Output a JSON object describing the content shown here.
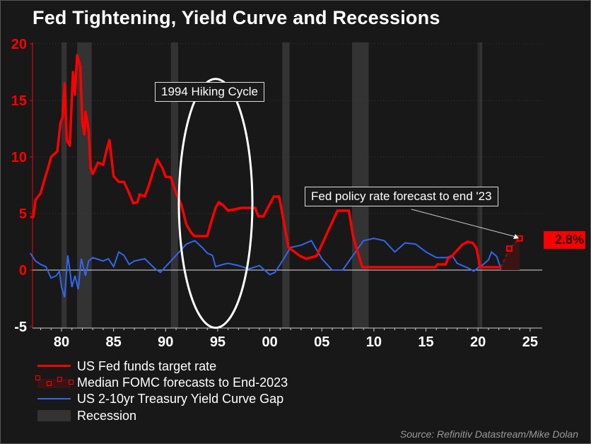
{
  "title": "Fed Tightening, Yield Curve and Recessions",
  "source": "Source: Refinitiv Datastream/Mike Dolan",
  "chart_data": {
    "type": "line",
    "title": "Fed Tightening, Yield Curve and Recessions",
    "xlabel": "",
    "ylabel": "",
    "xlim": [
      1977,
      2025.6
    ],
    "ylim": [
      -5,
      20
    ],
    "x_ticks": [
      1980,
      1985,
      1990,
      1995,
      2000,
      2005,
      2010,
      2015,
      2020,
      2025
    ],
    "x_tick_labels": [
      "80",
      "85",
      "90",
      "95",
      "00",
      "05",
      "10",
      "15",
      "20",
      "25"
    ],
    "y_ticks": [
      -5,
      0,
      5,
      10,
      15,
      20
    ],
    "y_tick_labels": [
      "-5",
      "0",
      "5",
      "10",
      "15",
      "20"
    ],
    "grid": "horizontal dotted",
    "legend_placement": "bottom-left",
    "colors": {
      "fed_funds": "#ff0000",
      "forecast": "#ff0000",
      "forecast_fill": "#3a1414",
      "yield_gap": "#3366ee",
      "recession": "#333333",
      "background": "#181818",
      "axis_labels": "#ff0000"
    },
    "series": [
      {
        "name": "US Fed funds target rate",
        "points": [
          [
            1977,
            4.7
          ],
          [
            1977.3,
            4.7
          ],
          [
            1977.5,
            6.2
          ],
          [
            1978,
            6.8
          ],
          [
            1978.3,
            7.8
          ],
          [
            1978.7,
            9
          ],
          [
            1979,
            10
          ],
          [
            1979.6,
            10.5
          ],
          [
            1979.9,
            13
          ],
          [
            1980.1,
            13.5
          ],
          [
            1980.3,
            16.5
          ],
          [
            1980.5,
            11.5
          ],
          [
            1980.8,
            11
          ],
          [
            1981.1,
            17.5
          ],
          [
            1981.3,
            15.5
          ],
          [
            1981.5,
            19
          ],
          [
            1981.8,
            18
          ],
          [
            1982.0,
            13
          ],
          [
            1982.2,
            12
          ],
          [
            1982.3,
            14
          ],
          [
            1982.6,
            12.5
          ],
          [
            1982.8,
            9
          ],
          [
            1983.0,
            8.5
          ],
          [
            1983.5,
            9.5
          ],
          [
            1984,
            9.3
          ],
          [
            1984.3,
            10.5
          ],
          [
            1984.6,
            11.5
          ],
          [
            1985,
            8.3
          ],
          [
            1985.5,
            7.8
          ],
          [
            1986,
            7.8
          ],
          [
            1986.5,
            6.8
          ],
          [
            1986.9,
            5.9
          ],
          [
            1987.3,
            6
          ],
          [
            1987.5,
            6.7
          ],
          [
            1988,
            6.5
          ],
          [
            1988.4,
            7.5
          ],
          [
            1988.8,
            8.7
          ],
          [
            1989.2,
            9.8
          ],
          [
            1989.7,
            9
          ],
          [
            1990,
            8.25
          ],
          [
            1990.5,
            8.2
          ],
          [
            1991,
            6.8
          ],
          [
            1991.5,
            5.8
          ],
          [
            1992,
            4
          ],
          [
            1992.5,
            3.25
          ],
          [
            1992.8,
            3
          ],
          [
            1994,
            3
          ],
          [
            1994.3,
            4
          ],
          [
            1994.8,
            5.5
          ],
          [
            1995.1,
            6
          ],
          [
            1995.5,
            5.75
          ],
          [
            1996,
            5.25
          ],
          [
            1997.3,
            5.5
          ],
          [
            1998.6,
            5.5
          ],
          [
            1998.9,
            4.75
          ],
          [
            1999.4,
            4.75
          ],
          [
            1999.8,
            5.5
          ],
          [
            2000.4,
            6.5
          ],
          [
            2000.9,
            6.5
          ],
          [
            2001.2,
            5
          ],
          [
            2001.8,
            2
          ],
          [
            2002.9,
            1.25
          ],
          [
            2003.5,
            1
          ],
          [
            2004.5,
            1.25
          ],
          [
            2005,
            2.25
          ],
          [
            2005.5,
            3.25
          ],
          [
            2006,
            4.25
          ],
          [
            2006.5,
            5.25
          ],
          [
            2007.6,
            5.25
          ],
          [
            2008,
            3
          ],
          [
            2008.3,
            2
          ],
          [
            2008.9,
            0.25
          ],
          [
            2015.9,
            0.25
          ],
          [
            2016.1,
            0.5
          ],
          [
            2016.9,
            0.5
          ],
          [
            2017.1,
            1
          ],
          [
            2017.5,
            1.25
          ],
          [
            2018,
            1.75
          ],
          [
            2018.5,
            2.25
          ],
          [
            2019,
            2.5
          ],
          [
            2019.5,
            2.4
          ],
          [
            2019.8,
            2
          ],
          [
            2019.9,
            1.75
          ],
          [
            2020.2,
            0.25
          ],
          [
            2022.2,
            0.25
          ]
        ]
      },
      {
        "name": "Median FOMC forecasts to End-2023",
        "points": [
          [
            2022.2,
            0.25
          ],
          [
            2023.0,
            1.9
          ],
          [
            2024.0,
            2.8
          ]
        ]
      },
      {
        "name": "US 2-10yr Treasury Yield Curve Gap",
        "points": [
          [
            1977,
            1.5
          ],
          [
            1977.5,
            0.8
          ],
          [
            1978,
            0.5
          ],
          [
            1978.5,
            0.3
          ],
          [
            1979,
            -0.7
          ],
          [
            1979.5,
            -0.5
          ],
          [
            1979.8,
            -0.1
          ],
          [
            1980,
            -1.5
          ],
          [
            1980.3,
            -2.4
          ],
          [
            1980.6,
            1.3
          ],
          [
            1980.8,
            0
          ],
          [
            1981,
            -1.5
          ],
          [
            1981.3,
            -0.5
          ],
          [
            1981.6,
            -1.7
          ],
          [
            1981.9,
            1
          ],
          [
            1982.3,
            -0.5
          ],
          [
            1982.6,
            0.8
          ],
          [
            1983,
            1.1
          ],
          [
            1984,
            0.8
          ],
          [
            1984.5,
            1
          ],
          [
            1985,
            0.3
          ],
          [
            1985.5,
            1.6
          ],
          [
            1986,
            1.3
          ],
          [
            1986.5,
            0.5
          ],
          [
            1987,
            0.8
          ],
          [
            1988,
            1
          ],
          [
            1989,
            0.1
          ],
          [
            1989.5,
            -0.2
          ],
          [
            1990,
            0.3
          ],
          [
            1991,
            1.3
          ],
          [
            1992,
            2.3
          ],
          [
            1992.8,
            2.6
          ],
          [
            1993.5,
            2.0
          ],
          [
            1994,
            1.5
          ],
          [
            1994.5,
            1.3
          ],
          [
            1994.8,
            0.3
          ],
          [
            1995.5,
            0.5
          ],
          [
            1996,
            0.6
          ],
          [
            1997,
            0.4
          ],
          [
            1998,
            0.1
          ],
          [
            1999,
            0.4
          ],
          [
            2000,
            -0.4
          ],
          [
            2000.5,
            -0.2
          ],
          [
            2001,
            0.5
          ],
          [
            2002,
            2
          ],
          [
            2003,
            2.2
          ],
          [
            2004,
            2.6
          ],
          [
            2005,
            1.0
          ],
          [
            2006,
            0
          ],
          [
            2007,
            0
          ],
          [
            2008,
            1.3
          ],
          [
            2009,
            2.6
          ],
          [
            2010,
            2.8
          ],
          [
            2011,
            2.6
          ],
          [
            2012,
            1.6
          ],
          [
            2013,
            2.4
          ],
          [
            2014,
            2.3
          ],
          [
            2015,
            1.6
          ],
          [
            2016,
            1.1
          ],
          [
            2017,
            1.1
          ],
          [
            2017.5,
            1.3
          ],
          [
            2018,
            0.6
          ],
          [
            2019,
            0.2
          ],
          [
            2019.6,
            -0.1
          ],
          [
            2020,
            0.2
          ],
          [
            2020.5,
            0.5
          ],
          [
            2021,
            0.9
          ],
          [
            2021.3,
            1.6
          ],
          [
            2021.8,
            1.2
          ],
          [
            2022.2,
            0.1
          ]
        ]
      }
    ],
    "recessions": [
      [
        1980.0,
        1980.5
      ],
      [
        1981.5,
        1982.9
      ],
      [
        1990.5,
        1991.2
      ],
      [
        2001.2,
        2001.9
      ],
      [
        2007.9,
        2009.5
      ],
      [
        2020.1,
        2020.4
      ]
    ],
    "annotations": [
      {
        "text": "1994 Hiking Cycle"
      },
      {
        "text": "Fed policy rate forecast to end '23"
      },
      {
        "text": "2.8%"
      }
    ]
  },
  "legend": {
    "items": [
      {
        "label": "US Fed funds target rate"
      },
      {
        "label": "Median FOMC forecasts to End-2023"
      },
      {
        "label": "US 2-10yr Treasury Yield Curve Gap"
      },
      {
        "label": "Recession"
      }
    ]
  }
}
